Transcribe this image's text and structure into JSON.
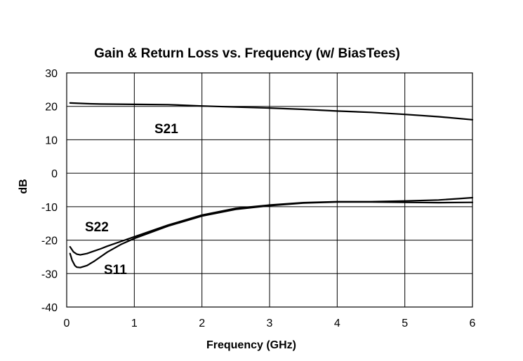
{
  "chart_data": {
    "type": "line",
    "title": "Gain & Return Loss vs. Frequency (w/ BiasTees)",
    "xlabel": "Frequency (GHz)",
    "ylabel": "dB",
    "xlim": [
      0,
      6
    ],
    "ylim": [
      -40,
      30
    ],
    "xticks": [
      "0",
      "1",
      "2",
      "3",
      "4",
      "5",
      "6"
    ],
    "yticks": [
      "30",
      "20",
      "10",
      "0",
      "-10",
      "-20",
      "-30",
      "-40"
    ],
    "grid": true,
    "series": [
      {
        "name": "S21",
        "x": [
          0.05,
          0.3,
          0.5,
          1.0,
          1.5,
          2.0,
          2.5,
          3.0,
          3.5,
          4.0,
          4.5,
          5.0,
          5.5,
          6.0
        ],
        "y": [
          21.0,
          20.8,
          20.7,
          20.6,
          20.5,
          20.1,
          19.8,
          19.5,
          19.1,
          18.6,
          18.2,
          17.6,
          16.9,
          16.0
        ]
      },
      {
        "name": "S22",
        "x": [
          0.05,
          0.1,
          0.15,
          0.2,
          0.3,
          0.4,
          0.5,
          0.6,
          0.8,
          1.0,
          1.5,
          2.0,
          2.5,
          3.0,
          3.5,
          4.0,
          4.5,
          5.0,
          5.5,
          5.8,
          6.0
        ],
        "y": [
          -22.0,
          -23.5,
          -24.2,
          -24.4,
          -24.0,
          -23.3,
          -22.6,
          -21.8,
          -20.4,
          -19.0,
          -15.5,
          -12.5,
          -10.5,
          -9.5,
          -8.8,
          -8.5,
          -8.5,
          -8.3,
          -8.0,
          -7.6,
          -7.3
        ]
      },
      {
        "name": "S11",
        "x": [
          0.05,
          0.08,
          0.12,
          0.15,
          0.2,
          0.3,
          0.4,
          0.5,
          0.6,
          0.8,
          1.0,
          1.5,
          2.0,
          2.5,
          3.0,
          3.5,
          4.0,
          4.5,
          5.0,
          5.5,
          6.0
        ],
        "y": [
          -24.0,
          -26.0,
          -27.6,
          -28.1,
          -28.2,
          -27.6,
          -26.4,
          -25.0,
          -23.6,
          -21.3,
          -19.5,
          -15.8,
          -12.8,
          -10.8,
          -9.7,
          -8.9,
          -8.6,
          -8.6,
          -8.7,
          -8.8,
          -8.7
        ]
      }
    ]
  }
}
